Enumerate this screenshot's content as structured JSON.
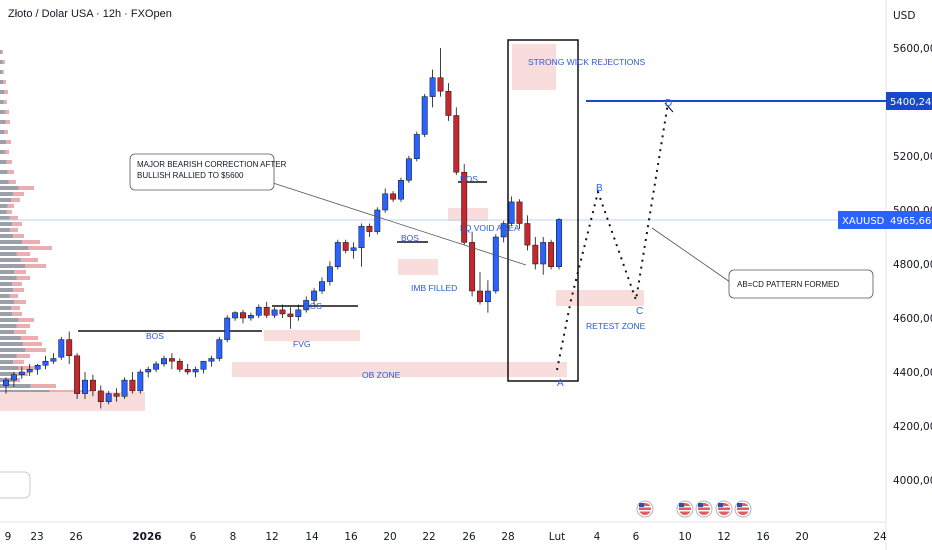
{
  "header": {
    "title": "Złoto / Dolar USA · 12h · FXOpen"
  },
  "price_axis": {
    "currency": "USD"
  },
  "chart_data": {
    "type": "candlestick",
    "y_ticks": [
      4000,
      4200,
      4400,
      4600,
      4800,
      5000,
      5200,
      5400,
      5600
    ],
    "y_tick_labels": [
      "4000,00",
      "4200,00",
      "4400,00",
      "4600,00",
      "4800,00",
      "5000,00",
      "5200,00",
      "5400,00",
      "5600,00"
    ],
    "ylim": [
      3870,
      5700
    ],
    "x_tick_labels": [
      {
        "label": "9",
        "bold": false
      },
      {
        "label": "23",
        "bold": false
      },
      {
        "label": "26",
        "bold": false
      },
      {
        "label": "2026",
        "bold": true
      },
      {
        "label": "6",
        "bold": false
      },
      {
        "label": "8",
        "bold": false
      },
      {
        "label": "12",
        "bold": false
      },
      {
        "label": "14",
        "bold": false
      },
      {
        "label": "16",
        "bold": false
      },
      {
        "label": "20",
        "bold": false
      },
      {
        "label": "22",
        "bold": false
      },
      {
        "label": "26",
        "bold": false
      },
      {
        "label": "28",
        "bold": false
      },
      {
        "label": "Lut",
        "bold": false
      },
      {
        "label": "4",
        "bold": false
      },
      {
        "label": "6",
        "bold": false
      },
      {
        "label": "10",
        "bold": false
      },
      {
        "label": "12",
        "bold": false
      },
      {
        "label": "16",
        "bold": false
      },
      {
        "label": "20",
        "bold": false
      },
      {
        "label": "24",
        "bold": false
      }
    ],
    "candles": [
      [
        4350,
        4380,
        4320,
        4370
      ],
      [
        4370,
        4400,
        4345,
        4390
      ],
      [
        4390,
        4420,
        4375,
        4400
      ],
      [
        4400,
        4430,
        4385,
        4410
      ],
      [
        4410,
        4430,
        4390,
        4425
      ],
      [
        4425,
        4460,
        4410,
        4440
      ],
      [
        4440,
        4470,
        4430,
        4450
      ],
      [
        4455,
        4530,
        4445,
        4520
      ],
      [
        4520,
        4550,
        4430,
        4460
      ],
      [
        4460,
        4470,
        4300,
        4320
      ],
      [
        4320,
        4400,
        4300,
        4370
      ],
      [
        4370,
        4390,
        4310,
        4330
      ],
      [
        4330,
        4350,
        4265,
        4290
      ],
      [
        4290,
        4330,
        4280,
        4320
      ],
      [
        4320,
        4340,
        4290,
        4310
      ],
      [
        4310,
        4380,
        4300,
        4370
      ],
      [
        4370,
        4400,
        4320,
        4330
      ],
      [
        4330,
        4410,
        4320,
        4400
      ],
      [
        4400,
        4420,
        4380,
        4410
      ],
      [
        4410,
        4440,
        4400,
        4430
      ],
      [
        4430,
        4460,
        4420,
        4450
      ],
      [
        4450,
        4470,
        4410,
        4440
      ],
      [
        4440,
        4450,
        4400,
        4410
      ],
      [
        4410,
        4430,
        4390,
        4400
      ],
      [
        4400,
        4420,
        4380,
        4410
      ],
      [
        4410,
        4440,
        4395,
        4440
      ],
      [
        4440,
        4460,
        4420,
        4450
      ],
      [
        4450,
        4530,
        4440,
        4520
      ],
      [
        4520,
        4610,
        4510,
        4600
      ],
      [
        4600,
        4625,
        4590,
        4620
      ],
      [
        4620,
        4630,
        4580,
        4600
      ],
      [
        4600,
        4620,
        4590,
        4610
      ],
      [
        4610,
        4650,
        4600,
        4640
      ],
      [
        4640,
        4660,
        4600,
        4610
      ],
      [
        4610,
        4640,
        4600,
        4630
      ],
      [
        4630,
        4650,
        4600,
        4615
      ],
      [
        4615,
        4640,
        4560,
        4605
      ],
      [
        4605,
        4650,
        4590,
        4630
      ],
      [
        4630,
        4680,
        4620,
        4665
      ],
      [
        4665,
        4710,
        4650,
        4700
      ],
      [
        4700,
        4750,
        4690,
        4735
      ],
      [
        4735,
        4810,
        4720,
        4790
      ],
      [
        4790,
        4890,
        4780,
        4880
      ],
      [
        4880,
        4890,
        4840,
        4850
      ],
      [
        4850,
        4880,
        4820,
        4860
      ],
      [
        4860,
        4950,
        4790,
        4940
      ],
      [
        4940,
        4950,
        4900,
        4920
      ],
      [
        4920,
        5010,
        4910,
        5000
      ],
      [
        5000,
        5080,
        4990,
        5060
      ],
      [
        5060,
        5070,
        5030,
        5040
      ],
      [
        5040,
        5120,
        5030,
        5110
      ],
      [
        5110,
        5200,
        5100,
        5190
      ],
      [
        5190,
        5290,
        5180,
        5280
      ],
      [
        5280,
        5430,
        5270,
        5420
      ],
      [
        5420,
        5520,
        5380,
        5490
      ],
      [
        5490,
        5600,
        5420,
        5440
      ],
      [
        5440,
        5470,
        5330,
        5350
      ],
      [
        5350,
        5380,
        5130,
        5140
      ],
      [
        5140,
        5170,
        4870,
        4880
      ],
      [
        4880,
        4920,
        4680,
        4700
      ],
      [
        4700,
        4770,
        4650,
        4660
      ],
      [
        4660,
        4740,
        4620,
        4700
      ],
      [
        4700,
        4910,
        4690,
        4900
      ],
      [
        4900,
        4960,
        4880,
        4950
      ],
      [
        4950,
        5050,
        4940,
        5030
      ],
      [
        5030,
        5040,
        4930,
        4950
      ],
      [
        4950,
        4980,
        4850,
        4870
      ],
      [
        4870,
        4900,
        4780,
        4800
      ],
      [
        4800,
        4900,
        4760,
        4880
      ],
      [
        4880,
        4890,
        4780,
        4790
      ],
      [
        4790,
        4970,
        4780,
        4965
      ]
    ]
  },
  "labels": {
    "strong_wick": "STRONG WICK REJECTIONS",
    "major_correction_line1": "MAJOR BEARISH CORRECTION AFTER",
    "major_correction_line2": "BULLISH RALLIED TO $5600",
    "bos1": "BOS",
    "bos2": "BOS",
    "bos3": "BOS",
    "bos4": "BOS",
    "lq_void": "LQ VOID AREA",
    "imb_filled": "IMB FILLED",
    "fvg": "FVG",
    "ob_zone": "OB ZONE",
    "retest_zone": "RETEST ZONE",
    "abcd_formed": "AB=CD PATTERN FORMED",
    "point_a": "A",
    "point_b": "B",
    "point_c": "C",
    "point_d": "D"
  },
  "price_tags": {
    "target_value": 5400.24,
    "target_label": "5400,24",
    "current_value": 4965.66,
    "current_label": "4965,66",
    "symbol": "XAUUSD"
  },
  "colors": {
    "bull": "#2962ff",
    "bear": "#c4272e",
    "zone": "#f9dcdc",
    "target_line": "#1848cc",
    "current_line": "#c0d2ee"
  },
  "icons": [
    "us-flag-event-icon",
    "us-flag-event-icon",
    "us-flag-event-icon",
    "us-flag-event-icon",
    "us-flag-event-icon"
  ]
}
